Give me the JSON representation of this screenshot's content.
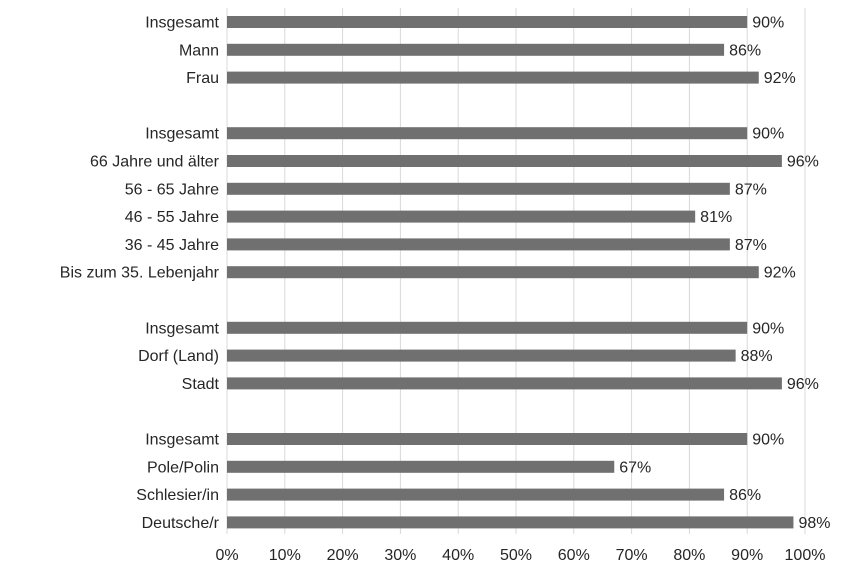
{
  "chart_data": {
    "type": "bar",
    "orientation": "horizontal",
    "title": "",
    "xlabel": "",
    "ylabel": "",
    "xlim": [
      0,
      100
    ],
    "x_ticks": [
      "0%",
      "10%",
      "20%",
      "30%",
      "40%",
      "50%",
      "60%",
      "70%",
      "80%",
      "90%",
      "100%"
    ],
    "grid": true,
    "legend": "none",
    "bar_color": "#707070",
    "categories": [
      "Insgesamt",
      "Mann",
      "Frau",
      "",
      "Insgesamt",
      "66 Jahre und älter",
      "56 - 65 Jahre",
      "46 - 55 Jahre",
      "36 - 45 Jahre",
      "Bis zum 35. Lebenjahr",
      "",
      "Insgesamt",
      "Dorf (Land)",
      "Stadt",
      "",
      "Insgesamt",
      "Pole/Polin",
      "Schlesier/in",
      "Deutsche/r"
    ],
    "values": [
      90,
      86,
      92,
      null,
      90,
      96,
      87,
      81,
      87,
      92,
      null,
      90,
      88,
      96,
      null,
      90,
      67,
      86,
      98
    ],
    "data_labels": [
      "90%",
      "86%",
      "92%",
      "",
      "90%",
      "96%",
      "87%",
      "81%",
      "87%",
      "92%",
      "",
      "90%",
      "88%",
      "96%",
      "",
      "90%",
      "67%",
      "86%",
      "98%"
    ]
  }
}
